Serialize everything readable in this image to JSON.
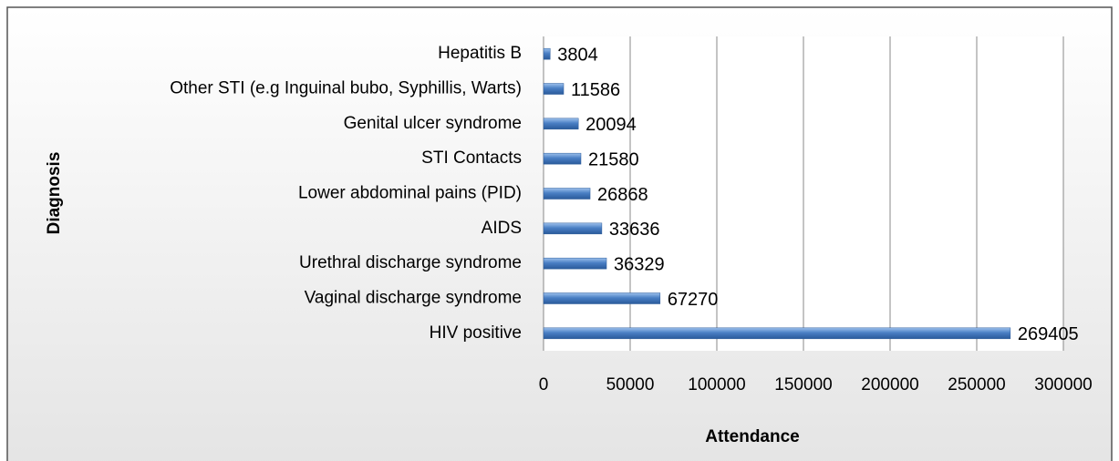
{
  "chart_data": {
    "type": "bar",
    "orientation": "horizontal",
    "x_label": "Attendance",
    "y_label": "Diagnosis",
    "categories": [
      "Hepatitis B",
      "Other STI (e.g Inguinal bubo, Syphillis, Warts)",
      "Genital ulcer syndrome",
      "STI Contacts",
      "Lower abdominal pains (PID)",
      "AIDS",
      "Urethral discharge syndrome",
      "Vaginal discharge syndrome",
      "HIV positive"
    ],
    "values": [
      3804,
      11586,
      20094,
      21580,
      26868,
      33636,
      36329,
      67270,
      269405
    ],
    "color": "#4a7fc4",
    "xlim": [
      0,
      300000
    ],
    "xticks": [
      0,
      50000,
      100000,
      150000,
      200000,
      250000,
      300000
    ],
    "grid": true
  }
}
